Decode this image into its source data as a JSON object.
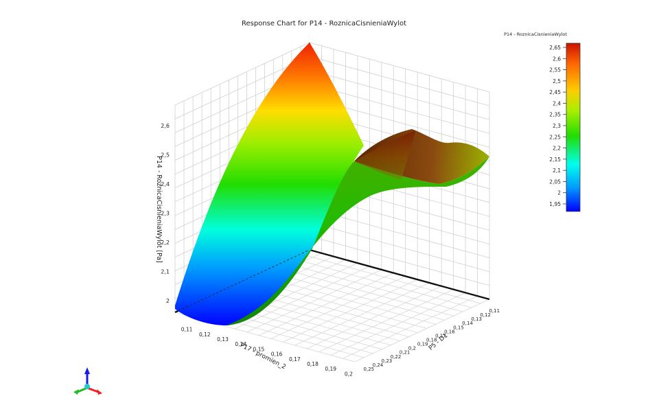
{
  "chart_data": {
    "type": "surface3d",
    "title": "Response Chart for P14 - RoznicaCisnieniaWylot",
    "zlabel": "P14 - RoznicaCisnieniaWylot  [Pa]",
    "xlabel": "P17 - promien_2",
    "ylabel": "P5 - D1",
    "x_ticks": [
      "0,11",
      "0,12",
      "0,13",
      "0,14",
      "0,15",
      "0,16",
      "0,17",
      "0,18",
      "0,19",
      "0,2"
    ],
    "y_ticks": [
      "0,25",
      "0,24",
      "0,23",
      "0,22",
      "0,21",
      "0,2",
      "0,19",
      "0,18",
      "0,17",
      "0,16",
      "0,15",
      "0,14",
      "0,13",
      "0,12",
      "0,11"
    ],
    "z_ticks": [
      "2",
      "2,1",
      "2,2",
      "2,3",
      "2,4",
      "2,5",
      "2,6"
    ],
    "legend": {
      "title": "P14 - RoznicaCisnieniaWylot",
      "ticks": [
        "2,65",
        "2,6",
        "2,55",
        "2,5",
        "2,45",
        "2,4",
        "2,35",
        "2,3",
        "2,25",
        "2,2",
        "2,15",
        "2,1",
        "2,05",
        "2",
        "1,95"
      ],
      "colors": [
        "#cc1100",
        "#ff6600",
        "#ffcc00",
        "#aaee00",
        "#22dd00",
        "#00ffee",
        "#0099ff",
        "#0000ff"
      ]
    }
  }
}
